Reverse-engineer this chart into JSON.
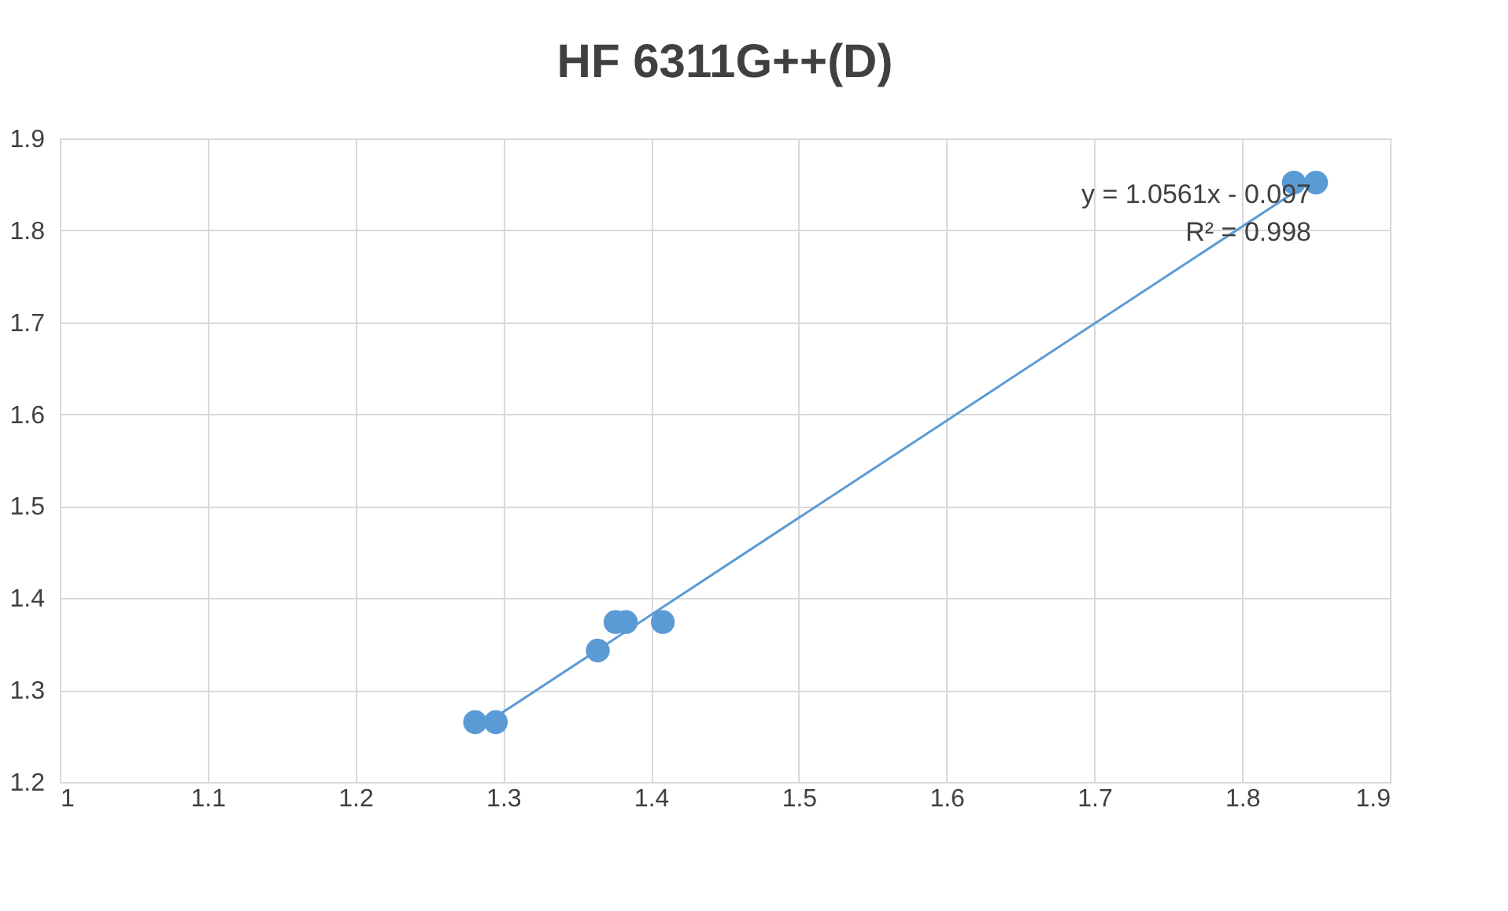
{
  "chart_data": {
    "type": "scatter",
    "title": "HF 6311G++(D)",
    "xlim": [
      1,
      1.9
    ],
    "xticks": [
      1,
      1.1,
      1.2,
      1.3,
      1.4,
      1.5,
      1.6,
      1.7,
      1.8,
      1.9
    ],
    "ylim": [
      1.2,
      1.9
    ],
    "yticks": [
      1.2,
      1.3,
      1.4,
      1.5,
      1.6,
      1.7,
      1.8,
      1.9
    ],
    "grid": true,
    "marker": "circle",
    "series": [
      {
        "color": "#5b9bd5",
        "x": [
          1.281,
          1.295,
          1.364,
          1.376,
          1.383,
          1.408,
          1.835,
          1.85
        ],
        "values": [
          1.265,
          1.265,
          1.343,
          1.374,
          1.374,
          1.374,
          1.852,
          1.852
        ]
      },
      {
        "type": "line",
        "color": "#5b9bd5",
        "marker": "none",
        "line_style": "solid",
        "x": [
          1.28,
          1.85
        ],
        "values": [
          1.255,
          1.857
        ]
      }
    ],
    "annotations": [
      "y = 1.0561x - 0.097",
      "R² = 0.998"
    ]
  }
}
